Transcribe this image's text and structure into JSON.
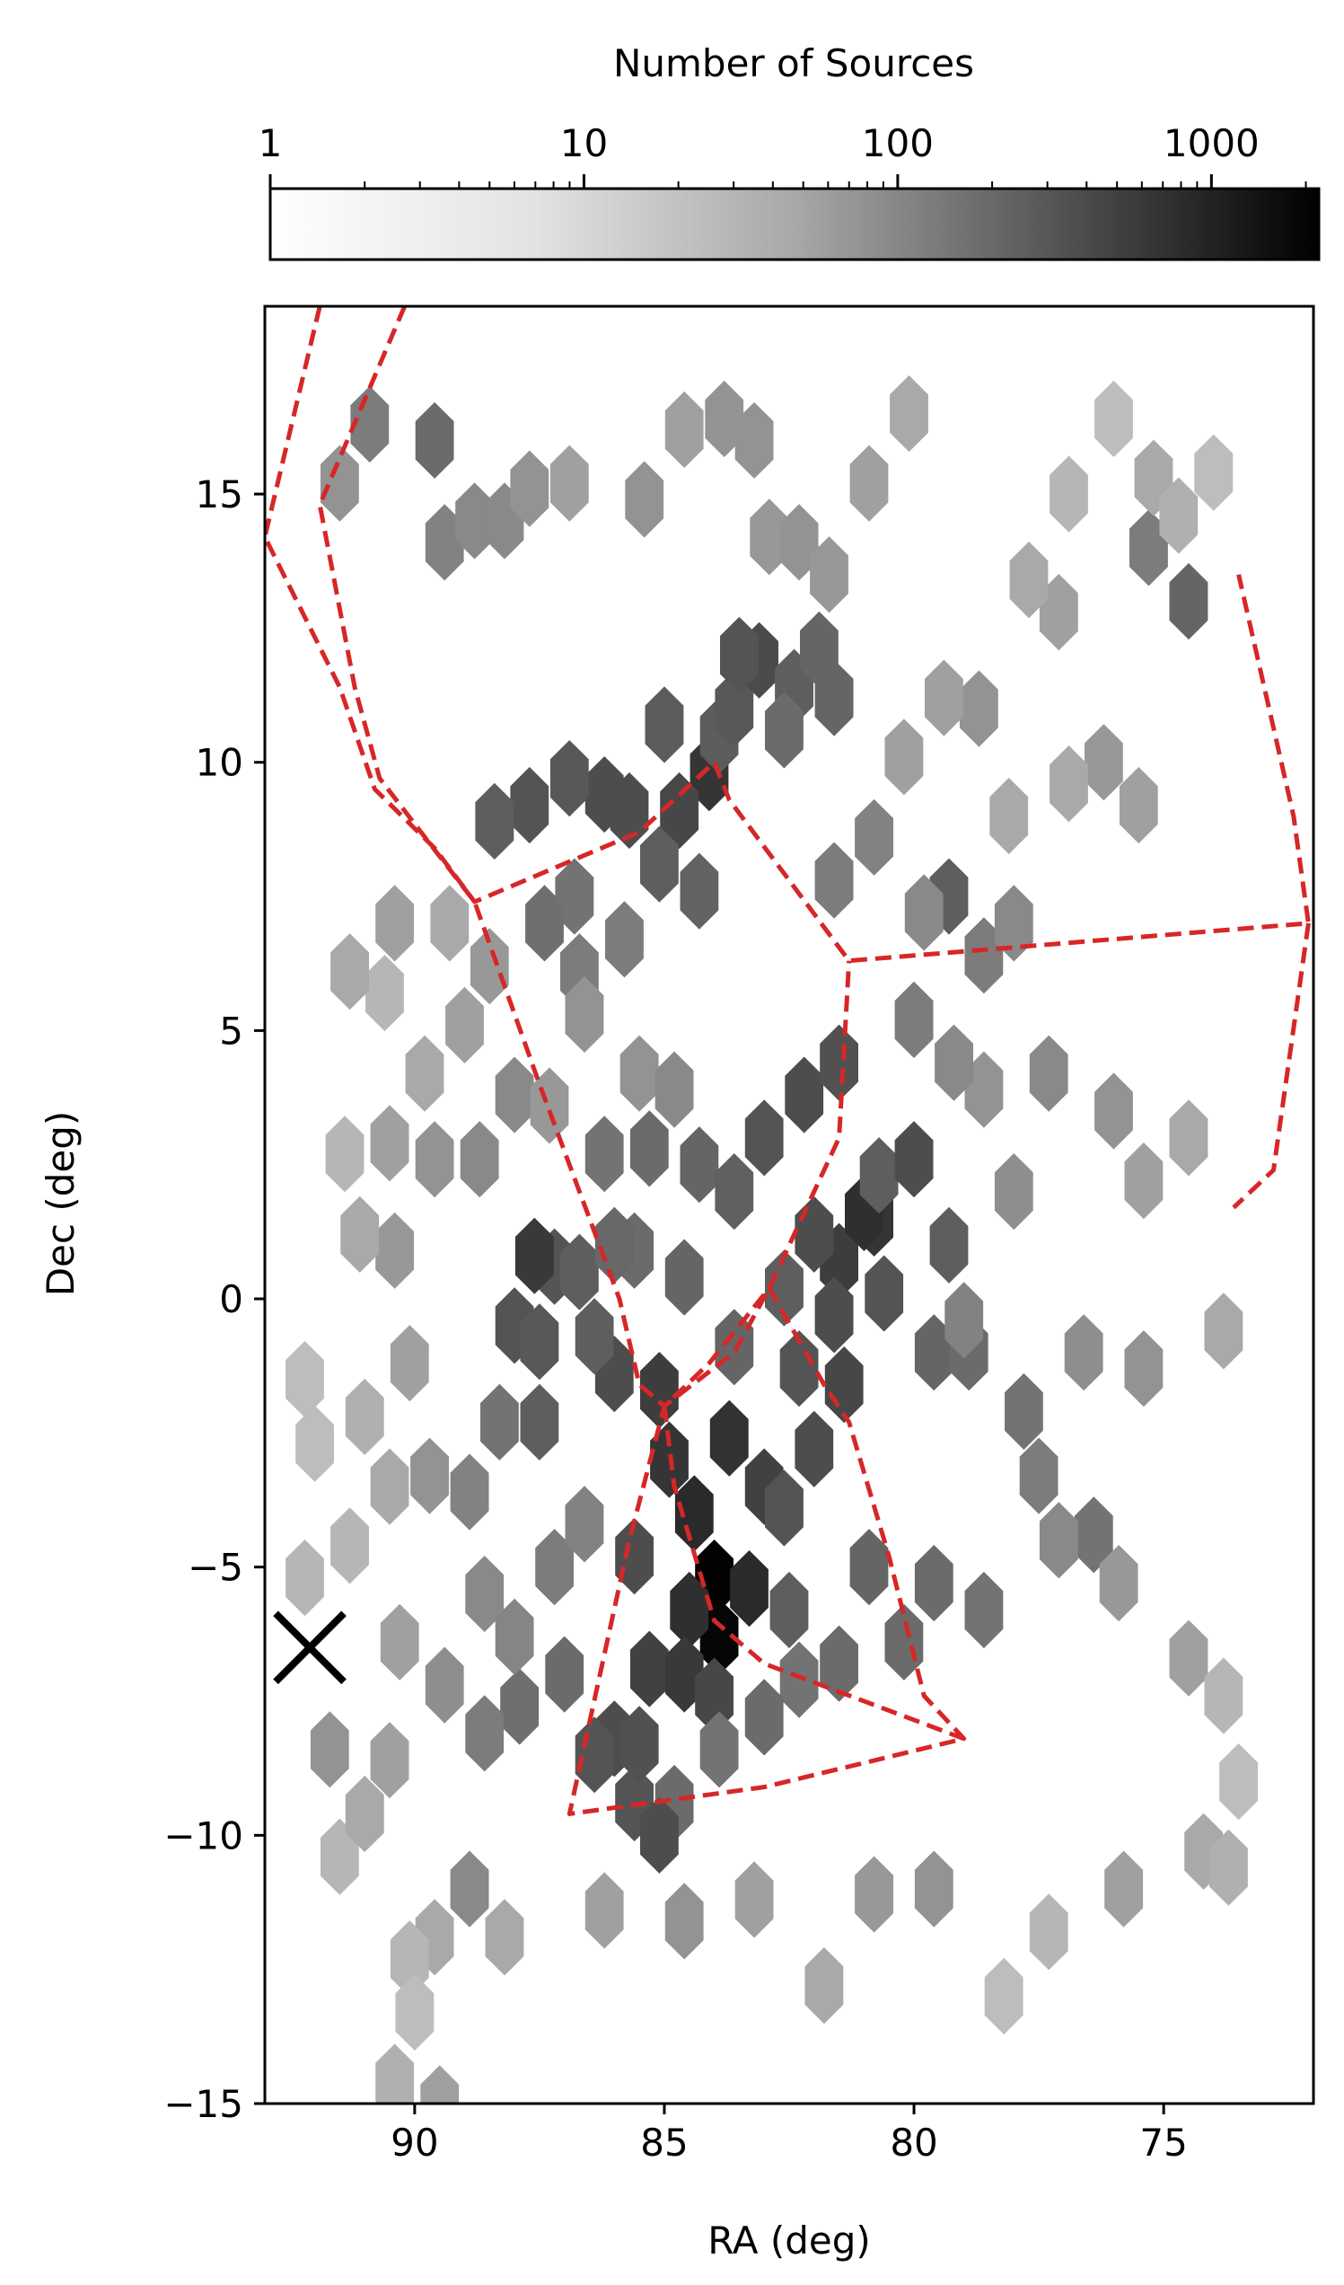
{
  "chart_data": {
    "type": "heatmap",
    "subtype": "hexbin",
    "xlabel": "RA (deg)",
    "ylabel": "Dec (deg)",
    "xlim": [
      93.0,
      72.0
    ],
    "ylim": [
      -15.0,
      18.5
    ],
    "x_inverted": true,
    "xticks": [
      90,
      85,
      80,
      75
    ],
    "xtick_labels": [
      "90",
      "85",
      "80",
      "75"
    ],
    "yticks": [
      15,
      10,
      5,
      0,
      -5,
      -10,
      -15
    ],
    "ytick_labels": [
      "15",
      "10",
      "5",
      "0",
      "−5",
      "−10",
      "−15"
    ],
    "colorbar": {
      "label": "Number of Sources",
      "scale": "log",
      "range": [
        1,
        2200
      ],
      "ticks": [
        1,
        10,
        100,
        1000
      ],
      "tick_labels": [
        "1",
        "10",
        "100",
        "1000"
      ],
      "colormap": "Greys",
      "position": "top"
    },
    "colors": {
      "outline": "#d62728",
      "marker": "#000000"
    },
    "hexbin_grid": {
      "ra_step": 0.77,
      "dec_step": 1.15
    },
    "hexbins": [
      [
        84.0,
        -5.2,
        2100
      ],
      [
        83.9,
        -6.3,
        1900
      ],
      [
        84.5,
        -5.8,
        600
      ],
      [
        83.3,
        -5.4,
        700
      ],
      [
        84.9,
        -3.0,
        500
      ],
      [
        85.1,
        -1.7,
        400
      ],
      [
        84.4,
        -4.0,
        700
      ],
      [
        83.7,
        -2.6,
        550
      ],
      [
        83.0,
        -3.5,
        350
      ],
      [
        85.6,
        -4.8,
        250
      ],
      [
        85.3,
        -6.9,
        350
      ],
      [
        84.6,
        -7.0,
        450
      ],
      [
        84.0,
        -7.4,
        300
      ],
      [
        86.0,
        -8.2,
        250
      ],
      [
        85.6,
        -9.4,
        200
      ],
      [
        86.4,
        -8.5,
        200
      ],
      [
        85.5,
        -8.3,
        220
      ],
      [
        84.8,
        -9.4,
        100
      ],
      [
        85.1,
        -10.0,
        250
      ],
      [
        82.5,
        -5.8,
        150
      ],
      [
        82.6,
        -3.9,
        200
      ],
      [
        82.0,
        -2.8,
        250
      ],
      [
        81.4,
        -1.6,
        300
      ],
      [
        82.3,
        -1.3,
        200
      ],
      [
        81.5,
        0.7,
        400
      ],
      [
        80.8,
        1.5,
        500
      ],
      [
        81.0,
        1.6,
        600
      ],
      [
        82.0,
        1.2,
        250
      ],
      [
        80.6,
        0.1,
        200
      ],
      [
        81.6,
        -0.3,
        250
      ],
      [
        82.6,
        0.2,
        150
      ],
      [
        83.6,
        -0.9,
        120
      ],
      [
        86.0,
        -1.4,
        250
      ],
      [
        86.4,
        -0.7,
        150
      ],
      [
        87.2,
        0.6,
        200
      ],
      [
        87.6,
        0.8,
        450
      ],
      [
        88.0,
        -0.5,
        200
      ],
      [
        87.5,
        -0.8,
        180
      ],
      [
        86.7,
        0.5,
        150
      ],
      [
        83.0,
        3.0,
        200
      ],
      [
        82.2,
        3.8,
        250
      ],
      [
        81.5,
        4.4,
        220
      ],
      [
        80.7,
        2.3,
        150
      ],
      [
        80.0,
        2.6,
        250
      ],
      [
        79.3,
        1.0,
        150
      ],
      [
        79.6,
        -1.0,
        120
      ],
      [
        78.9,
        -1.0,
        100
      ],
      [
        77.8,
        -2.1,
        80
      ],
      [
        77.5,
        -3.3,
        60
      ],
      [
        76.4,
        -4.4,
        80
      ],
      [
        79.6,
        -5.3,
        100
      ],
      [
        78.6,
        -5.8,
        80
      ],
      [
        80.2,
        -6.4,
        100
      ],
      [
        80.9,
        -5.0,
        120
      ],
      [
        81.5,
        -6.8,
        100
      ],
      [
        82.3,
        -7.1,
        80
      ],
      [
        83.0,
        -7.8,
        100
      ],
      [
        83.9,
        -8.4,
        80
      ],
      [
        87.0,
        -7.0,
        100
      ],
      [
        87.9,
        -7.6,
        90
      ],
      [
        88.6,
        -8.1,
        60
      ],
      [
        87.5,
        -2.3,
        150
      ],
      [
        88.3,
        -2.3,
        80
      ],
      [
        88.9,
        -3.6,
        50
      ],
      [
        89.7,
        -3.3,
        30
      ],
      [
        90.5,
        -3.5,
        15
      ],
      [
        91.3,
        -4.6,
        10
      ],
      [
        84.1,
        9.8,
        500
      ],
      [
        84.7,
        9.1,
        300
      ],
      [
        85.7,
        9.1,
        250
      ],
      [
        86.2,
        9.4,
        250
      ],
      [
        86.9,
        9.7,
        180
      ],
      [
        87.7,
        9.2,
        200
      ],
      [
        88.4,
        8.9,
        150
      ],
      [
        85.1,
        8.1,
        150
      ],
      [
        84.3,
        7.6,
        130
      ],
      [
        85.0,
        10.7,
        160
      ],
      [
        83.9,
        10.5,
        160
      ],
      [
        83.6,
        11.0,
        180
      ],
      [
        83.1,
        11.9,
        260
      ],
      [
        83.5,
        12.0,
        200
      ],
      [
        82.4,
        11.4,
        150
      ],
      [
        81.9,
        12.1,
        120
      ],
      [
        81.6,
        11.2,
        120
      ],
      [
        82.6,
        10.6,
        100
      ],
      [
        79.3,
        7.5,
        150
      ],
      [
        78.6,
        6.4,
        60
      ],
      [
        78.0,
        7.0,
        40
      ],
      [
        80.8,
        8.6,
        50
      ],
      [
        81.6,
        7.8,
        60
      ],
      [
        86.8,
        7.5,
        80
      ],
      [
        87.4,
        7.0,
        90
      ],
      [
        86.7,
        6.1,
        60
      ],
      [
        85.8,
        6.7,
        60
      ],
      [
        75.3,
        14.0,
        60
      ],
      [
        74.5,
        13.0,
        120
      ],
      [
        90.9,
        16.3,
        60
      ],
      [
        89.6,
        16.0,
        100
      ],
      [
        91.5,
        15.2,
        30
      ],
      [
        89.4,
        14.1,
        50
      ],
      [
        88.8,
        14.5,
        40
      ],
      [
        88.2,
        14.5,
        40
      ],
      [
        87.7,
        15.1,
        30
      ],
      [
        86.9,
        15.2,
        20
      ],
      [
        85.4,
        14.9,
        30
      ],
      [
        84.6,
        16.2,
        20
      ],
      [
        83.8,
        16.4,
        30
      ],
      [
        83.2,
        16.0,
        30
      ],
      [
        82.9,
        14.2,
        25
      ],
      [
        82.3,
        14.1,
        30
      ],
      [
        81.7,
        13.5,
        25
      ],
      [
        80.9,
        15.2,
        20
      ],
      [
        80.1,
        16.5,
        15
      ],
      [
        76.9,
        15.0,
        10
      ],
      [
        76.0,
        16.4,
        8
      ],
      [
        75.2,
        15.3,
        15
      ],
      [
        74.7,
        14.6,
        12
      ],
      [
        74.0,
        15.4,
        8
      ],
      [
        77.1,
        12.8,
        20
      ],
      [
        77.7,
        13.4,
        15
      ],
      [
        78.7,
        11.0,
        30
      ],
      [
        79.4,
        11.2,
        20
      ],
      [
        80.2,
        10.1,
        20
      ],
      [
        76.2,
        10.0,
        25
      ],
      [
        75.5,
        9.2,
        20
      ],
      [
        76.9,
        9.6,
        15
      ],
      [
        78.1,
        9.0,
        15
      ],
      [
        79.8,
        7.2,
        40
      ],
      [
        77.3,
        4.2,
        40
      ],
      [
        76.0,
        3.5,
        30
      ],
      [
        75.4,
        2.2,
        20
      ],
      [
        74.5,
        3.0,
        15
      ],
      [
        78.6,
        3.9,
        30
      ],
      [
        79.2,
        4.4,
        40
      ],
      [
        80.0,
        5.2,
        60
      ],
      [
        78.0,
        2.0,
        35
      ],
      [
        79.0,
        -0.4,
        50
      ],
      [
        76.6,
        -1.0,
        35
      ],
      [
        75.4,
        -1.3,
        30
      ],
      [
        73.8,
        -0.6,
        15
      ],
      [
        77.1,
        -4.5,
        40
      ],
      [
        75.9,
        -5.3,
        25
      ],
      [
        74.5,
        -6.7,
        20
      ],
      [
        73.8,
        -7.4,
        10
      ],
      [
        73.5,
        -9.0,
        8
      ],
      [
        74.2,
        -10.3,
        15
      ],
      [
        73.7,
        -10.6,
        12
      ],
      [
        75.8,
        -11.0,
        20
      ],
      [
        77.3,
        -11.8,
        10
      ],
      [
        78.2,
        -13.0,
        8
      ],
      [
        79.6,
        -11.0,
        30
      ],
      [
        80.8,
        -11.1,
        25
      ],
      [
        81.8,
        -12.8,
        15
      ],
      [
        83.2,
        -11.2,
        20
      ],
      [
        84.6,
        -11.6,
        30
      ],
      [
        86.2,
        -11.4,
        20
      ],
      [
        88.2,
        -11.9,
        15
      ],
      [
        88.9,
        -11.0,
        40
      ],
      [
        89.6,
        -11.9,
        15
      ],
      [
        90.1,
        -12.3,
        10
      ],
      [
        90.4,
        -14.6,
        12
      ],
      [
        89.5,
        -15.0,
        20
      ],
      [
        90.0,
        -13.3,
        8
      ],
      [
        91.5,
        -10.4,
        10
      ],
      [
        91.0,
        -9.6,
        15
      ],
      [
        91.7,
        -8.4,
        30
      ],
      [
        90.5,
        -8.6,
        20
      ],
      [
        89.4,
        -7.2,
        35
      ],
      [
        88.6,
        -5.5,
        40
      ],
      [
        88.0,
        -6.3,
        45
      ],
      [
        87.2,
        -5.0,
        60
      ],
      [
        86.6,
        -4.2,
        50
      ],
      [
        90.3,
        -6.4,
        20
      ],
      [
        92.2,
        -5.2,
        10
      ],
      [
        92.0,
        -2.7,
        8
      ],
      [
        92.2,
        -1.5,
        8
      ],
      [
        91.0,
        -2.2,
        12
      ],
      [
        90.1,
        -1.2,
        20
      ],
      [
        90.4,
        0.9,
        25
      ],
      [
        91.1,
        1.2,
        15
      ],
      [
        91.4,
        2.7,
        10
      ],
      [
        90.5,
        2.9,
        20
      ],
      [
        89.6,
        2.6,
        30
      ],
      [
        88.7,
        2.6,
        40
      ],
      [
        88.0,
        3.8,
        40
      ],
      [
        87.3,
        3.6,
        25
      ],
      [
        86.6,
        5.3,
        30
      ],
      [
        85.5,
        4.2,
        30
      ],
      [
        84.8,
        3.9,
        40
      ],
      [
        89.0,
        5.1,
        20
      ],
      [
        89.8,
        4.2,
        15
      ],
      [
        90.6,
        5.7,
        10
      ],
      [
        91.3,
        6.1,
        15
      ],
      [
        90.4,
        7.0,
        20
      ],
      [
        89.3,
        7.0,
        15
      ],
      [
        88.5,
        6.2,
        25
      ],
      [
        86.2,
        2.7,
        80
      ],
      [
        85.3,
        2.8,
        100
      ],
      [
        84.3,
        2.5,
        120
      ],
      [
        83.6,
        2.0,
        140
      ],
      [
        84.6,
        0.4,
        120
      ],
      [
        85.6,
        0.9,
        100
      ],
      [
        86.0,
        1.0,
        110
      ]
    ],
    "outlines": [
      {
        "closed": false,
        "points": [
          [
            91.9,
            18.5
          ],
          [
            93.0,
            14.2
          ],
          [
            91.5,
            11.4
          ],
          [
            90.8,
            9.5
          ],
          [
            89.6,
            8.4
          ],
          [
            88.8,
            7.4
          ],
          [
            85.5,
            8.7
          ],
          [
            84.0,
            10.0
          ],
          [
            83.7,
            9.3
          ],
          [
            81.3,
            6.3
          ],
          [
            72.1,
            7.0
          ],
          [
            72.4,
            9.0
          ],
          [
            73.5,
            13.5
          ]
        ]
      },
      {
        "closed": false,
        "points": [
          [
            90.2,
            18.5
          ],
          [
            91.9,
            14.8
          ],
          [
            91.2,
            11.4
          ],
          [
            90.7,
            9.7
          ],
          [
            88.8,
            7.4
          ],
          [
            87.5,
            4.0
          ],
          [
            85.9,
            0.0
          ],
          [
            85.5,
            -1.6
          ],
          [
            85.0,
            -2.0
          ],
          [
            83.6,
            -1.0
          ],
          [
            82.9,
            0.2
          ],
          [
            81.5,
            3.0
          ],
          [
            81.3,
            6.3
          ]
        ]
      },
      {
        "closed": false,
        "points": [
          [
            72.1,
            7.0
          ],
          [
            72.8,
            2.4
          ],
          [
            73.6,
            1.7
          ]
        ]
      },
      {
        "closed": false,
        "points": [
          [
            85.0,
            -2.0
          ],
          [
            84.8,
            -3.5
          ],
          [
            84.0,
            -6.0
          ],
          [
            83.0,
            -6.8
          ],
          [
            79.0,
            -8.2
          ],
          [
            83.0,
            -9.1
          ],
          [
            86.9,
            -9.6
          ],
          [
            85.7,
            -4.5
          ],
          [
            85.0,
            -2.0
          ],
          [
            84.1,
            -1.2
          ],
          [
            82.9,
            0.2
          ],
          [
            81.8,
            -1.6
          ],
          [
            81.3,
            -2.3
          ],
          [
            80.5,
            -4.8
          ],
          [
            79.8,
            -7.4
          ],
          [
            79.0,
            -8.2
          ]
        ]
      }
    ],
    "marker": {
      "type": "x",
      "ra": 92.1,
      "dec": -6.5
    }
  }
}
